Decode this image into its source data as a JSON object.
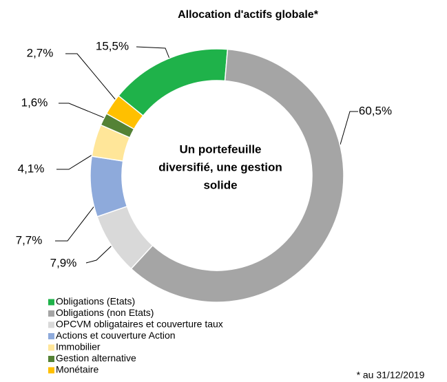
{
  "chart_data": {
    "type": "pie",
    "title": "Allocation d'actifs globale*",
    "center_text": [
      "Un portefeuille",
      "diversifié, une gestion",
      "solide"
    ],
    "footnote": "* au 31/12/2019",
    "categories": [
      "Obligations (Etats)",
      "Obligations (non Etats)",
      "OPCVM obligataires et couverture taux",
      "Actions et couverture Action",
      "Immobilier",
      "Gestion alternative",
      "Monétaire"
    ],
    "values": [
      15.5,
      60.5,
      7.9,
      7.7,
      4.1,
      1.6,
      2.7
    ],
    "value_labels": [
      "15,5%",
      "60,5%",
      "7,9%",
      "7,7%",
      "4,1%",
      "1,6%",
      "2,7%"
    ],
    "colors": [
      "#1fb24a",
      "#a5a5a5",
      "#d9d9d9",
      "#8eaadb",
      "#ffe699",
      "#548235",
      "#ffc000"
    ],
    "legend": "bottom-left"
  }
}
